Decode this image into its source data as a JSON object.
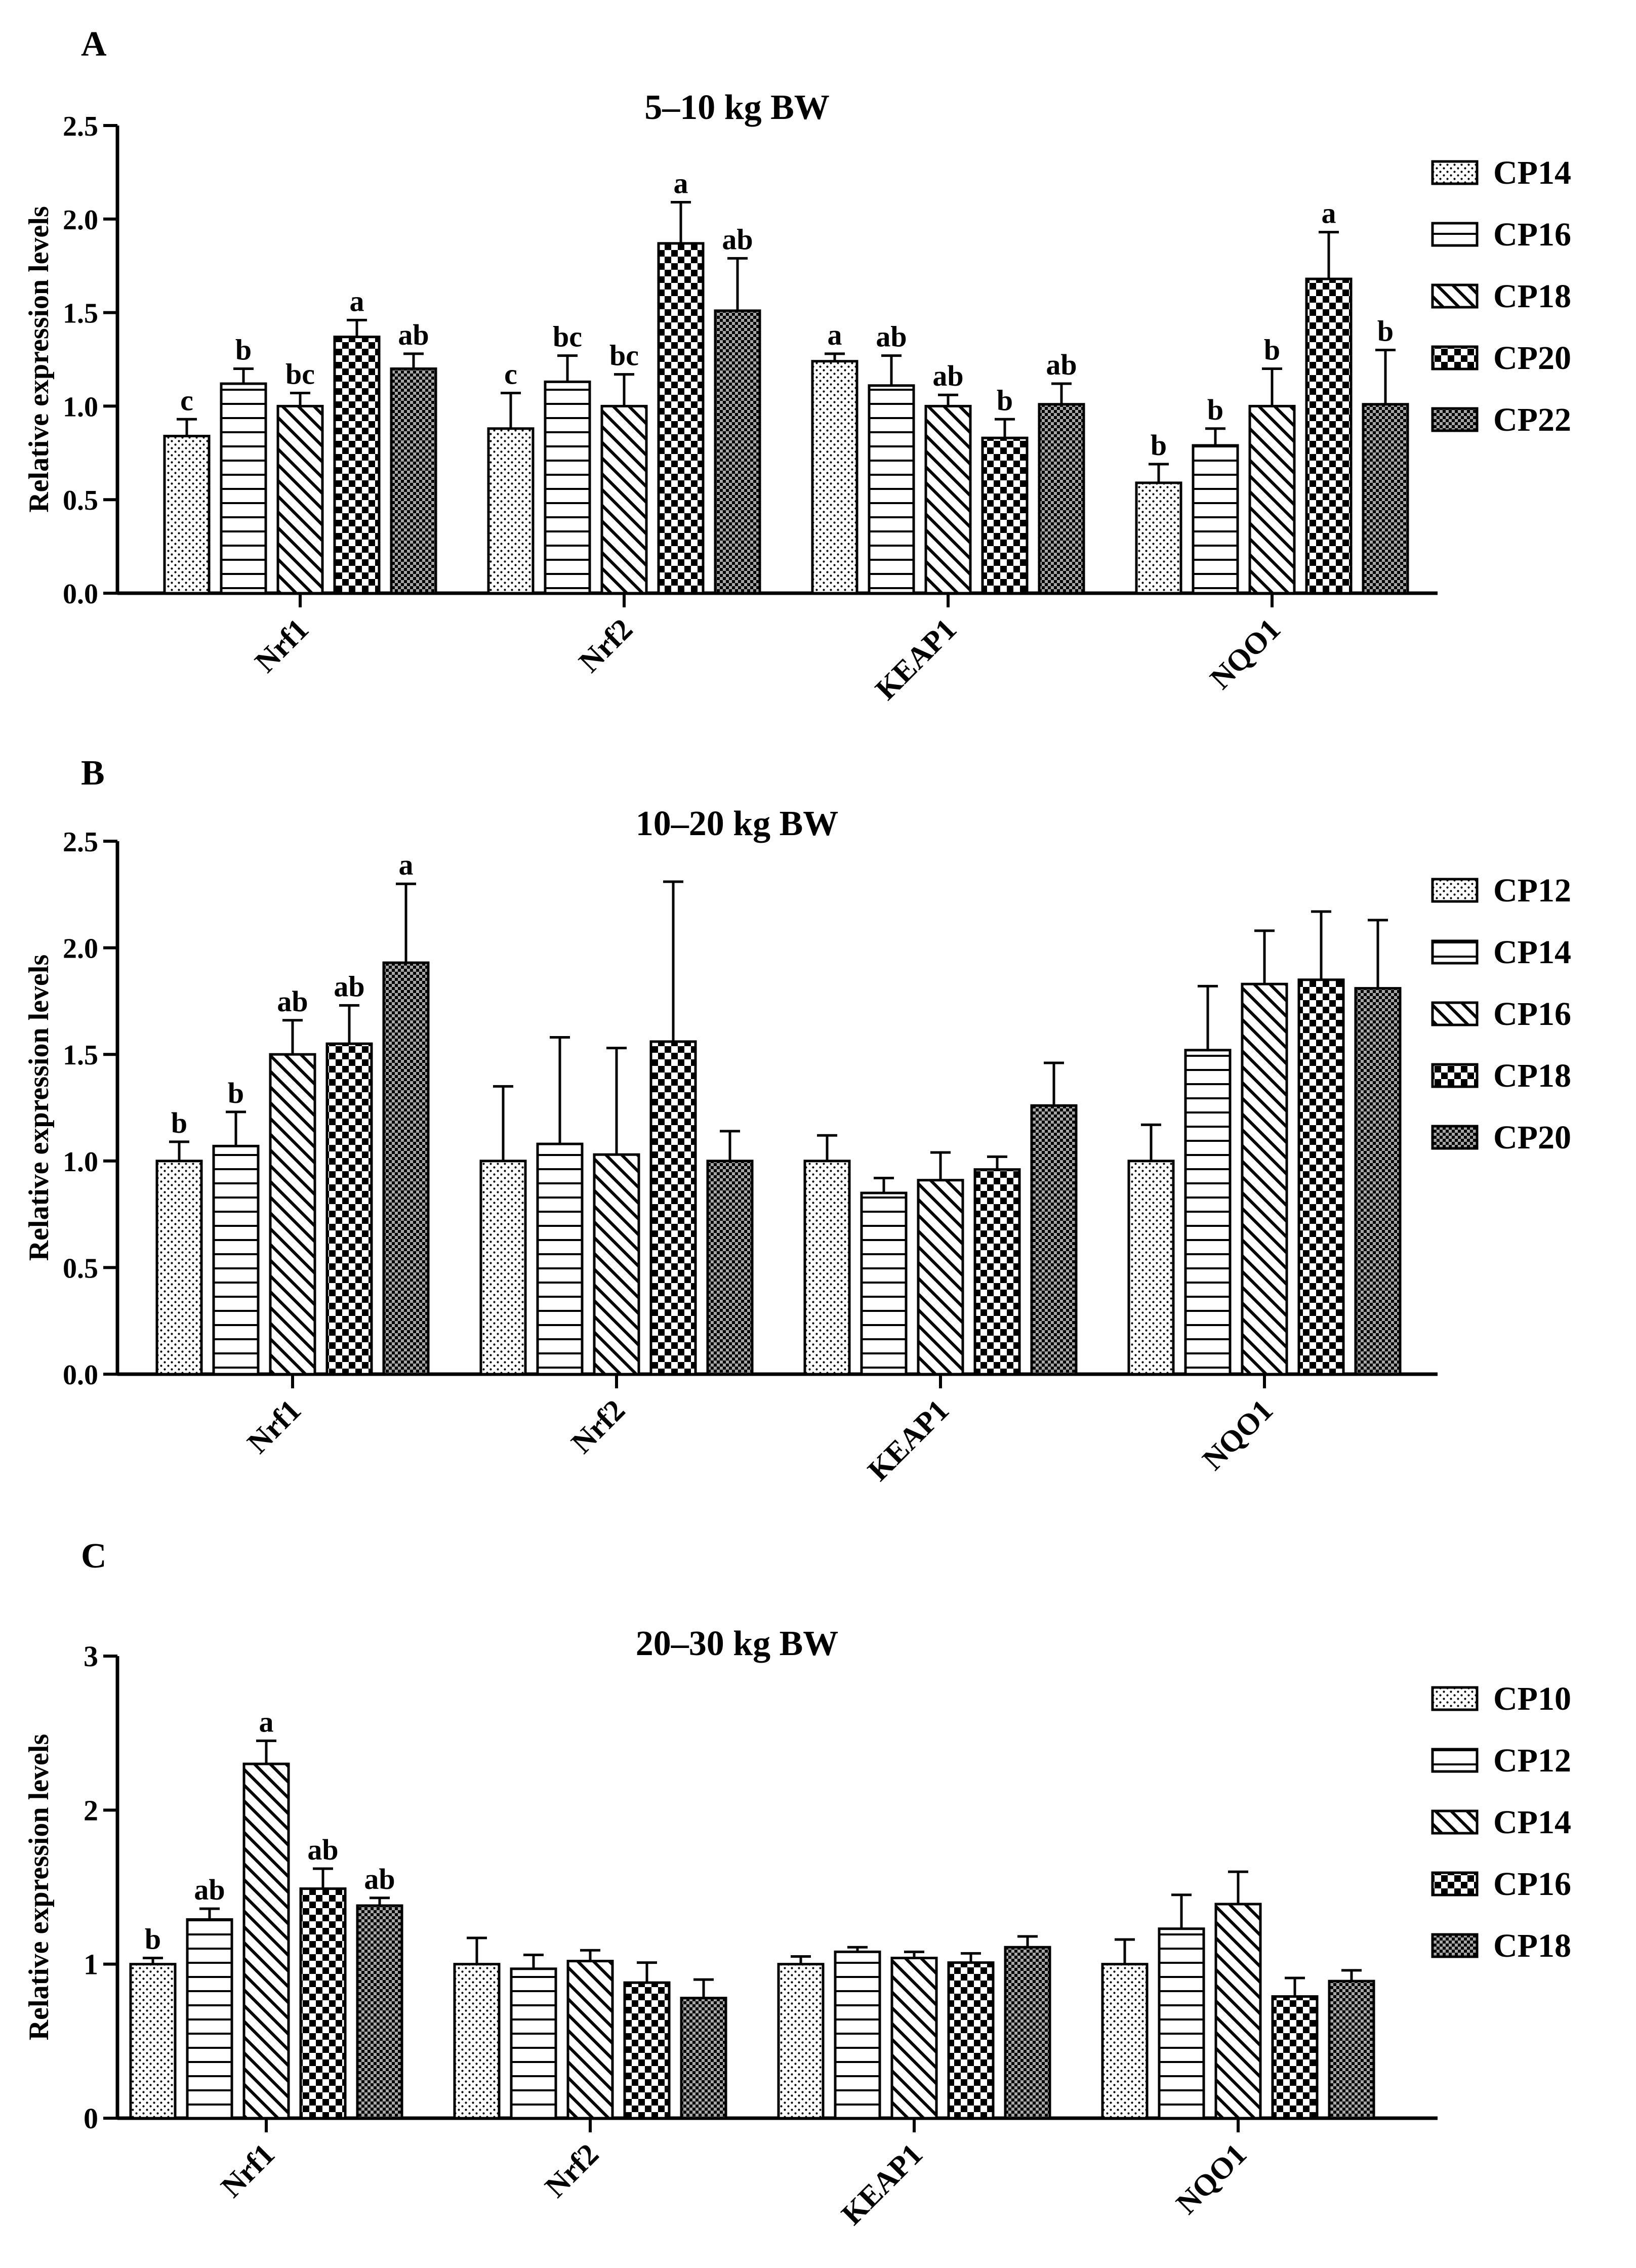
{
  "chart_data": [
    {
      "panel_label": "A",
      "type": "bar",
      "title": "5–10 kg BW",
      "ylabel": "Relative expression levels",
      "xlabel": "",
      "ylim": [
        0,
        2.5
      ],
      "yticks": [
        "0.0",
        "0.5",
        "1.0",
        "1.5",
        "2.0",
        "2.5"
      ],
      "categories": [
        "Nrf1",
        "Nrf2",
        "KEAP1",
        "NQO1"
      ],
      "legend_position": "right",
      "series": [
        {
          "name": "CP14",
          "pattern": "dots",
          "values": [
            0.84,
            0.88,
            1.24,
            0.59
          ],
          "errors": [
            0.09,
            0.19,
            0.04,
            0.1
          ],
          "letters": [
            "c",
            "c",
            "a",
            "b"
          ]
        },
        {
          "name": "CP16",
          "pattern": "hlines",
          "values": [
            1.12,
            1.13,
            1.11,
            0.79
          ],
          "errors": [
            0.08,
            0.14,
            0.16,
            0.09
          ],
          "letters": [
            "b",
            "bc",
            "ab",
            "b"
          ]
        },
        {
          "name": "CP18",
          "pattern": "diagonal",
          "values": [
            1.0,
            1.0,
            1.0,
            1.0
          ],
          "errors": [
            0.07,
            0.17,
            0.06,
            0.2
          ],
          "letters": [
            "bc",
            "bc",
            "ab",
            "b"
          ]
        },
        {
          "name": "CP20",
          "pattern": "checker",
          "values": [
            1.37,
            1.87,
            0.83,
            1.68
          ],
          "errors": [
            0.09,
            0.22,
            0.1,
            0.25
          ],
          "letters": [
            "a",
            "a",
            "b",
            "a"
          ]
        },
        {
          "name": "CP22",
          "pattern": "crosshatch",
          "values": [
            1.2,
            1.51,
            1.01,
            1.01
          ],
          "errors": [
            0.08,
            0.28,
            0.11,
            0.29
          ],
          "letters": [
            "ab",
            "ab",
            "ab",
            "b"
          ]
        }
      ]
    },
    {
      "panel_label": "B",
      "type": "bar",
      "title": "10–20 kg BW",
      "ylabel": "Relative expression levels",
      "xlabel": "",
      "ylim": [
        0,
        2.5
      ],
      "yticks": [
        "0.0",
        "0.5",
        "1.0",
        "1.5",
        "2.0",
        "2.5"
      ],
      "categories": [
        "Nrf1",
        "Nrf2",
        "KEAP1",
        "NQO1"
      ],
      "legend_position": "right",
      "series": [
        {
          "name": "CP12",
          "pattern": "dots",
          "values": [
            1.0,
            1.0,
            1.0,
            1.0
          ],
          "errors": [
            0.09,
            0.35,
            0.12,
            0.17
          ],
          "letters": [
            "b",
            "",
            "",
            ""
          ]
        },
        {
          "name": "CP14",
          "pattern": "hlines",
          "values": [
            1.07,
            1.08,
            0.85,
            1.52
          ],
          "errors": [
            0.16,
            0.5,
            0.07,
            0.3
          ],
          "letters": [
            "b",
            "",
            "",
            ""
          ]
        },
        {
          "name": "CP16",
          "pattern": "diagonal",
          "values": [
            1.5,
            1.03,
            0.91,
            1.83
          ],
          "errors": [
            0.16,
            0.5,
            0.13,
            0.25
          ],
          "letters": [
            "ab",
            "",
            "",
            ""
          ]
        },
        {
          "name": "CP18",
          "pattern": "checker",
          "values": [
            1.55,
            1.56,
            0.96,
            1.85
          ],
          "errors": [
            0.18,
            0.75,
            0.06,
            0.32
          ],
          "letters": [
            "ab",
            "",
            "",
            ""
          ]
        },
        {
          "name": "CP20",
          "pattern": "crosshatch",
          "values": [
            1.93,
            1.0,
            1.26,
            1.81
          ],
          "errors": [
            0.37,
            0.14,
            0.2,
            0.32
          ],
          "letters": [
            "a",
            "",
            "",
            ""
          ]
        }
      ]
    },
    {
      "panel_label": "C",
      "type": "bar",
      "title": "20–30 kg BW",
      "ylabel": "Relative expression levels",
      "xlabel": "",
      "ylim": [
        0,
        3
      ],
      "yticks": [
        "0",
        "1",
        "2",
        "3"
      ],
      "categories": [
        "Nrf1",
        "Nrf2",
        "KEAP1",
        "NQO1"
      ],
      "legend_position": "right",
      "series": [
        {
          "name": "CP10",
          "pattern": "dots",
          "values": [
            1.0,
            1.0,
            1.0,
            1.0
          ],
          "errors": [
            0.04,
            0.17,
            0.05,
            0.16
          ],
          "letters": [
            "b",
            "",
            "",
            ""
          ]
        },
        {
          "name": "CP12",
          "pattern": "hlines",
          "values": [
            1.29,
            0.97,
            1.08,
            1.23
          ],
          "errors": [
            0.07,
            0.09,
            0.03,
            0.22
          ],
          "letters": [
            "ab",
            "",
            "",
            ""
          ]
        },
        {
          "name": "CP14",
          "pattern": "diagonal",
          "values": [
            2.3,
            1.02,
            1.04,
            1.39
          ],
          "errors": [
            0.15,
            0.07,
            0.04,
            0.21
          ],
          "letters": [
            "a",
            "",
            "",
            ""
          ]
        },
        {
          "name": "CP16",
          "pattern": "checker",
          "values": [
            1.49,
            0.88,
            1.01,
            0.79
          ],
          "errors": [
            0.13,
            0.13,
            0.06,
            0.12
          ],
          "letters": [
            "ab",
            "",
            "",
            ""
          ]
        },
        {
          "name": "CP18",
          "pattern": "crosshatch",
          "values": [
            1.38,
            0.78,
            1.11,
            0.89
          ],
          "errors": [
            0.05,
            0.12,
            0.07,
            0.07
          ],
          "letters": [
            "ab",
            "",
            "",
            ""
          ]
        }
      ]
    }
  ]
}
